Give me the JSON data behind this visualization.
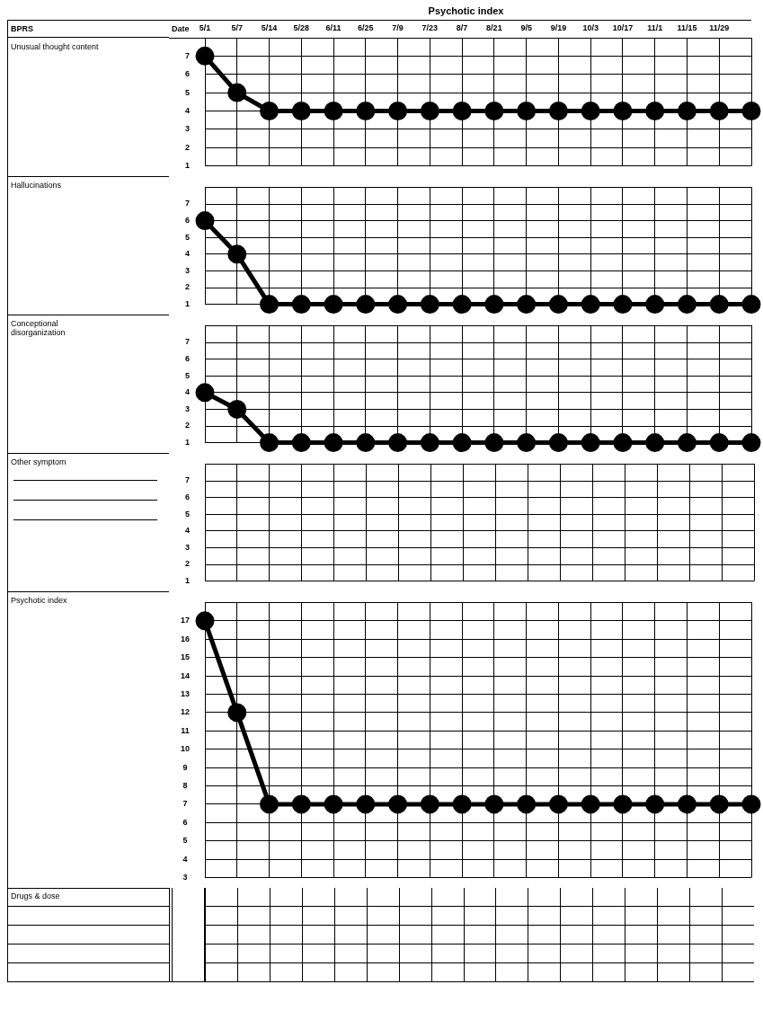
{
  "chart_data": [
    {
      "type": "line",
      "title": "Psychotic index",
      "xlabel": "Date",
      "ylabel": "Unusual thought content",
      "annotations": [
        "BPRS"
      ],
      "categories": [
        "5/1",
        "5/7",
        "5/14",
        "5/28",
        "6/11",
        "6/25",
        "7/9",
        "7/23",
        "8/7",
        "8/21",
        "9/5",
        "9/19",
        "10/3",
        "10/17",
        "11/1",
        "11/15",
        "11/29",
        null
      ],
      "series": [
        {
          "color": "#000000",
          "values": [
            7,
            5,
            4,
            4,
            4,
            4,
            4,
            4,
            4,
            4,
            4,
            4,
            4,
            4,
            4,
            4,
            4,
            4
          ]
        }
      ],
      "ylim": [
        1,
        8
      ],
      "yticks": [
        1,
        2,
        3,
        4,
        5,
        6,
        7
      ],
      "grid": true,
      "legend": false,
      "marker": "circle",
      "line_style": "solid"
    },
    {
      "type": "line",
      "ylabel": "Hallucinations",
      "categories": [
        "5/1",
        "5/7",
        "5/14",
        "5/28",
        "6/11",
        "6/25",
        "7/9",
        "7/23",
        "8/7",
        "8/21",
        "9/5",
        "9/19",
        "10/3",
        "10/17",
        "11/1",
        "11/15",
        "11/29",
        null
      ],
      "series": [
        {
          "color": "#000000",
          "values": [
            6,
            4,
            1,
            1,
            1,
            1,
            1,
            1,
            1,
            1,
            1,
            1,
            1,
            1,
            1,
            1,
            1,
            1
          ]
        }
      ],
      "ylim": [
        1,
        8
      ],
      "yticks": [
        1,
        2,
        3,
        4,
        5,
        6,
        7
      ],
      "grid": true,
      "legend": false,
      "marker": "circle",
      "line_style": "solid",
      "tick_labels": "y"
    },
    {
      "type": "line",
      "ylabel": "Conceptional disorganization",
      "categories": [
        "5/1",
        "5/7",
        "5/14",
        "5/28",
        "6/11",
        "6/25",
        "7/9",
        "7/23",
        "8/7",
        "8/21",
        "9/5",
        "9/19",
        "10/3",
        "10/17",
        "11/1",
        "11/15",
        "11/29",
        null
      ],
      "series": [
        {
          "color": "#000000",
          "values": [
            4,
            3,
            1,
            1,
            1,
            1,
            1,
            1,
            1,
            1,
            1,
            1,
            1,
            1,
            1,
            1,
            1,
            1
          ]
        }
      ],
      "ylim": [
        1,
        8
      ],
      "yticks": [
        1,
        2,
        3,
        4,
        5,
        6,
        7
      ],
      "grid": true,
      "legend": false,
      "marker": "circle",
      "line_style": "solid",
      "tick_labels": "y"
    },
    {
      "type": "line",
      "ylabel": "Other symptom",
      "categories": [
        "5/1",
        "5/7",
        "5/14",
        "5/28",
        "6/11",
        "6/25",
        "7/9",
        "7/23",
        "8/7",
        "8/21",
        "9/5",
        "9/19",
        "10/3",
        "10/17",
        "11/1",
        "11/15",
        "11/29",
        null
      ],
      "ylim": [
        1,
        8
      ],
      "yticks": [
        1,
        2,
        3,
        4,
        5,
        6,
        7
      ],
      "grid": true,
      "legend": false,
      "tick_labels": "y"
    },
    {
      "type": "line",
      "ylabel": "Psychotic index",
      "annotations": [
        "Drugs & dose"
      ],
      "categories": [
        "5/1",
        "5/7",
        "5/14",
        "5/28",
        "6/11",
        "6/25",
        "7/9",
        "7/23",
        "8/7",
        "8/21",
        "9/5",
        "9/19",
        "10/3",
        "10/17",
        "11/1",
        "11/15",
        "11/29",
        null
      ],
      "series": [
        {
          "color": "#000000",
          "values": [
            17,
            12,
            7,
            7,
            7,
            7,
            7,
            7,
            7,
            7,
            7,
            7,
            7,
            7,
            7,
            7,
            7,
            7
          ]
        }
      ],
      "ylim": [
        3,
        18
      ],
      "yticks": [
        3,
        4,
        5,
        6,
        7,
        8,
        9,
        10,
        11,
        12,
        13,
        14,
        15,
        16,
        17
      ],
      "grid": true,
      "legend": false,
      "marker": "circle",
      "line_style": "solid",
      "tick_labels": "y"
    }
  ]
}
